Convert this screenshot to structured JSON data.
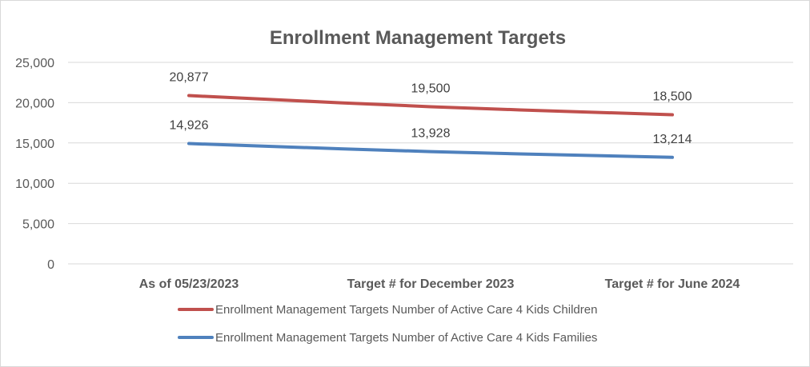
{
  "chart_data": {
    "type": "line",
    "title": "Enrollment Management Targets",
    "xlabel": "",
    "ylabel": "",
    "categories": [
      "As of 05/23/2023",
      "Target # for December 2023",
      "Target # for June 2024"
    ],
    "ylim": [
      0,
      25000
    ],
    "yticks": [
      0,
      5000,
      10000,
      15000,
      20000,
      25000
    ],
    "ytick_labels": [
      "0",
      "5,000",
      "10,000",
      "15,000",
      "20,000",
      "25,000"
    ],
    "grid": true,
    "legend_position": "bottom",
    "series": [
      {
        "name": "Enrollment Management Targets Number of Active Care 4 Kids Children",
        "values": [
          20877,
          19500,
          18500
        ],
        "labels": [
          "20,877",
          "19,500",
          "18,500"
        ],
        "color": "#c0504d"
      },
      {
        "name": "Enrollment Management Targets Number of Active Care 4 Kids Families",
        "values": [
          14926,
          13928,
          13214
        ],
        "labels": [
          "14,926",
          "13,928",
          "13,214"
        ],
        "color": "#4f81bd"
      }
    ]
  }
}
